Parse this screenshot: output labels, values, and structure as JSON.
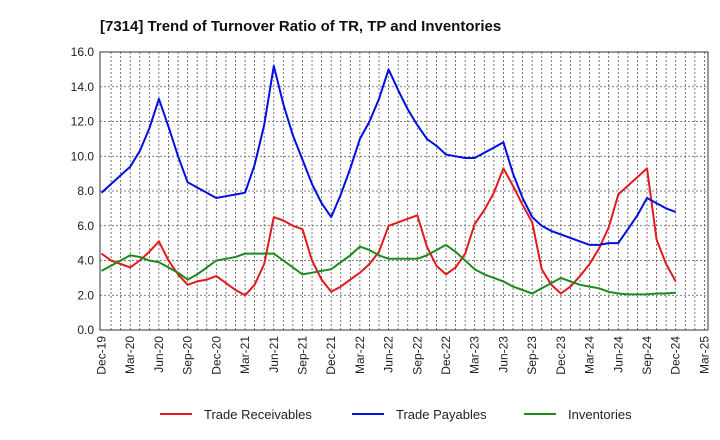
{
  "chart_data": {
    "type": "line",
    "title": "[7314]  Trend of Turnover Ratio of TR, TP and Inventories",
    "xlabel": "",
    "ylabel": "",
    "ylim": [
      0,
      16
    ],
    "yticks": [
      "0.0",
      "2.0",
      "4.0",
      "6.0",
      "8.0",
      "10.0",
      "12.0",
      "14.0",
      "16.0"
    ],
    "xticks": [
      "Dec-19",
      "Mar-20",
      "Jun-20",
      "Sep-20",
      "Dec-20",
      "Mar-21",
      "Jun-21",
      "Sep-21",
      "Dec-21",
      "Mar-22",
      "Jun-22",
      "Sep-22",
      "Dec-22",
      "Mar-23",
      "Jun-23",
      "Sep-23",
      "Dec-23",
      "Mar-24",
      "Jun-24",
      "Sep-24",
      "Dec-24",
      "Mar-25"
    ],
    "grid": true,
    "legend_position": "bottom",
    "series": [
      {
        "name": "Trade Receivables",
        "color": "#e31a1c",
        "values": [
          4.4,
          4.0,
          3.8,
          3.6,
          4.0,
          4.5,
          5.1,
          4.0,
          3.2,
          2.6,
          2.8,
          2.9,
          3.1,
          2.7,
          2.3,
          2.0,
          2.6,
          3.8,
          6.5,
          6.3,
          6.0,
          5.8,
          4.0,
          2.9,
          2.2,
          2.5,
          2.9,
          3.3,
          3.8,
          4.5,
          6.0,
          6.2,
          6.4,
          6.6,
          4.8,
          3.7,
          3.2,
          3.6,
          4.4,
          6.1,
          6.9,
          7.9,
          9.3,
          8.3,
          7.2,
          6.2,
          3.5,
          2.6,
          2.1,
          2.5,
          3.1,
          3.8,
          4.7,
          5.9,
          7.8,
          8.3,
          8.8,
          9.3,
          5.2,
          3.8,
          2.8
        ]
      },
      {
        "name": "Trade Payables",
        "color": "#0010e0",
        "values": [
          7.9,
          8.4,
          8.9,
          9.4,
          10.3,
          11.6,
          13.3,
          11.7,
          10.0,
          8.5,
          8.2,
          7.9,
          7.6,
          7.7,
          7.8,
          7.9,
          9.5,
          11.8,
          15.2,
          13.0,
          11.2,
          9.8,
          8.4,
          7.3,
          6.5,
          7.8,
          9.3,
          11.0,
          12.0,
          13.3,
          15.0,
          13.8,
          12.7,
          11.8,
          11.0,
          10.6,
          10.1,
          10.0,
          9.9,
          9.9,
          10.2,
          10.5,
          10.8,
          9.0,
          7.6,
          6.5,
          6.0,
          5.7,
          5.5,
          5.3,
          5.1,
          4.9,
          4.9,
          5.0,
          5.0,
          5.8,
          6.6,
          7.6,
          7.3,
          7.0,
          6.8
        ]
      },
      {
        "name": "Inventories",
        "color": "#1e8a1e",
        "values": [
          3.4,
          3.7,
          4.0,
          4.3,
          4.2,
          4.0,
          3.9,
          3.6,
          3.3,
          2.9,
          3.2,
          3.6,
          4.0,
          4.1,
          4.2,
          4.4,
          4.4,
          4.4,
          4.4,
          4.0,
          3.6,
          3.2,
          3.3,
          3.4,
          3.5,
          3.9,
          4.3,
          4.8,
          4.6,
          4.3,
          4.1,
          4.1,
          4.1,
          4.1,
          4.3,
          4.6,
          4.9,
          4.5,
          4.0,
          3.5,
          3.2,
          3.0,
          2.8,
          2.5,
          2.3,
          2.1,
          2.4,
          2.7,
          3.0,
          2.8,
          2.6,
          2.5,
          2.4,
          2.2,
          2.1,
          2.05,
          2.05,
          2.05,
          2.1,
          2.1,
          2.15
        ]
      }
    ]
  }
}
